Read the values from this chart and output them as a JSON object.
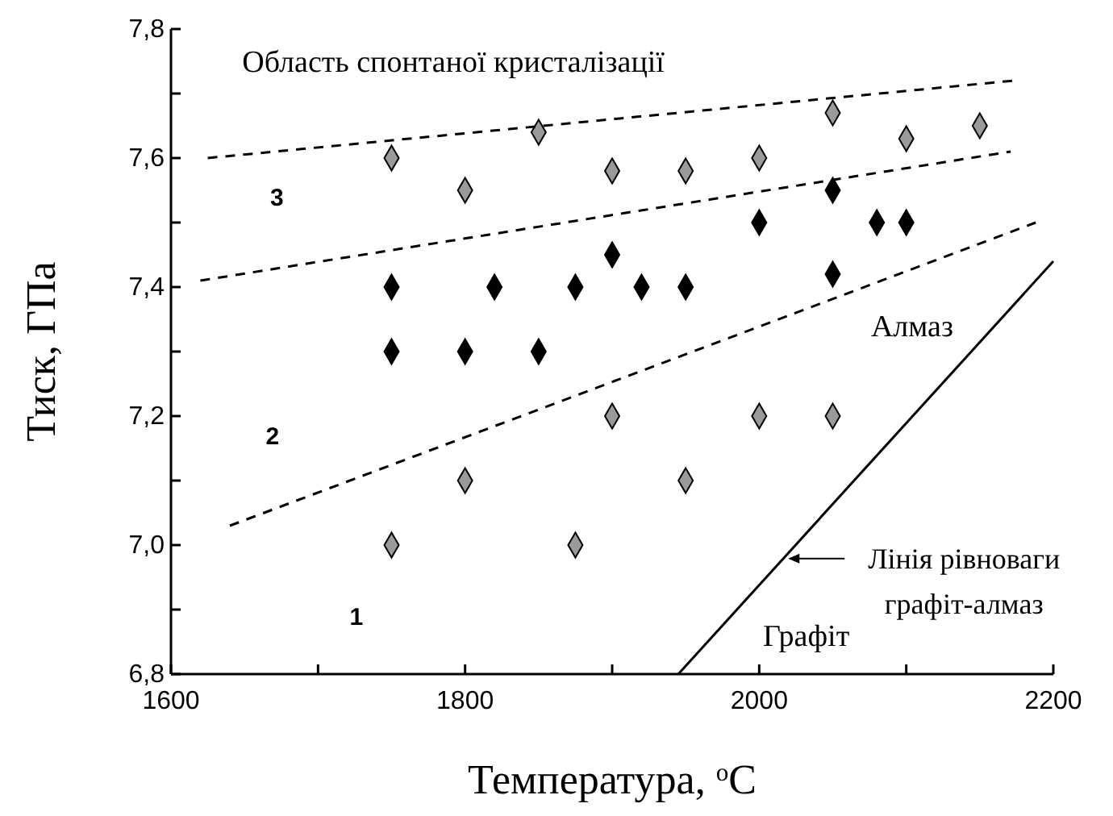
{
  "chart_data": {
    "type": "scatter",
    "xlabel": "Температура, $^{o}$C",
    "ylabel": "Тиск, ГПа",
    "xlim": [
      1600,
      2200
    ],
    "ylim": [
      6.8,
      7.8
    ],
    "xticks": [
      1600,
      {
        "value": 1700,
        "label": null
      },
      1800,
      {
        "value": 1900,
        "label": null
      },
      2000,
      {
        "value": 2100,
        "label": null
      },
      2200
    ],
    "yticks": [
      {
        "value": 6.8,
        "label": "6,8"
      },
      {
        "value": 6.9,
        "label": null
      },
      {
        "value": 7.0,
        "label": "7,0"
      },
      {
        "value": 7.1,
        "label": null
      },
      {
        "value": 7.2,
        "label": "7,2"
      },
      {
        "value": 7.3,
        "label": null
      },
      {
        "value": 7.4,
        "label": "7,4"
      },
      {
        "value": 7.5,
        "label": null
      },
      {
        "value": 7.6,
        "label": "7,6"
      },
      {
        "value": 7.7,
        "label": null
      },
      {
        "value": 7.8,
        "label": "7,8"
      }
    ],
    "marker": "diamond",
    "grid": false,
    "legend": "bottom right",
    "series": [
      {
        "type": "scatter",
        "color": "#9a9a9a",
        "x": [
          1750,
          1800,
          1850,
          1900,
          1950,
          2000,
          2050,
          2100,
          2150,
          1900,
          2000,
          2050,
          1800,
          1950,
          1750,
          1875
        ],
        "values": [
          7.6,
          7.55,
          7.64,
          7.58,
          7.58,
          7.6,
          7.67,
          7.63,
          7.65,
          7.2,
          7.2,
          7.2,
          7.1,
          7.1,
          7.0,
          7.0
        ]
      },
      {
        "type": "scatter",
        "color": "#000000",
        "x": [
          1750,
          1820,
          1875,
          1900,
          1920,
          1950,
          2000,
          2050,
          2050,
          2080,
          2100,
          1750,
          1800,
          1850
        ],
        "values": [
          7.4,
          7.4,
          7.4,
          7.45,
          7.4,
          7.4,
          7.5,
          7.55,
          7.42,
          7.5,
          7.5,
          7.3,
          7.3,
          7.3
        ]
      },
      {
        "type": "line",
        "color": "#000000",
        "line_style": "dashed",
        "marker": "none",
        "x": [
          1625,
          2173
        ],
        "values": [
          7.6,
          7.72
        ]
      },
      {
        "type": "line",
        "color": "#000000",
        "line_style": "dashed",
        "marker": "none",
        "x": [
          1620,
          2171
        ],
        "values": [
          7.41,
          7.61
        ]
      },
      {
        "type": "line",
        "color": "#000000",
        "line_style": "dashed",
        "marker": "none",
        "x": [
          1640,
          2188
        ],
        "values": [
          7.03,
          7.5
        ]
      },
      {
        "type": "line",
        "name": "Лінія рівноваги графіт-алмаз",
        "color": "#000000",
        "line_style": "solid",
        "marker": "none",
        "x": [
          1945,
          2200
        ],
        "values": [
          6.8,
          7.44
        ]
      }
    ],
    "annotations": [
      "Область спонтаної кристалізації",
      "3",
      "2",
      "1",
      "Алмаз",
      "Графіт"
    ]
  }
}
